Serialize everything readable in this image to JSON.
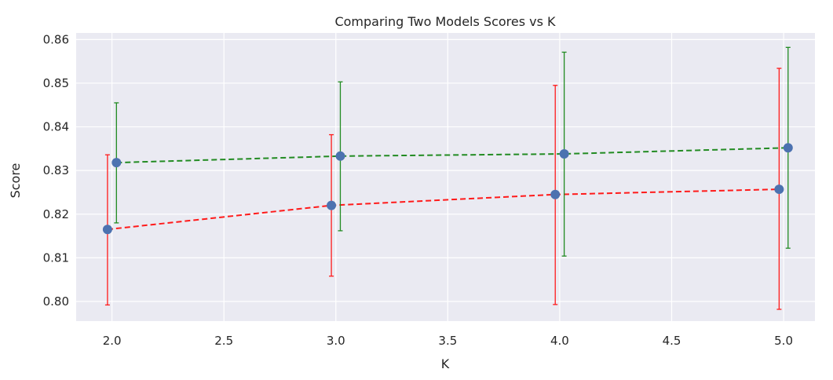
{
  "chart_data": {
    "type": "line",
    "title": "Comparing Two Models Scores vs K",
    "xlabel": "K",
    "ylabel": "Score",
    "xlim": [
      1.84,
      5.14
    ],
    "ylim": [
      0.7955,
      0.8615
    ],
    "xticks": [
      "2.0",
      "2.5",
      "3.0",
      "3.5",
      "4.0",
      "4.5",
      "5.0"
    ],
    "yticks": [
      "0.80",
      "0.81",
      "0.82",
      "0.83",
      "0.84",
      "0.85",
      "0.86"
    ],
    "grid": true,
    "background": "#eaeaf2",
    "marker_color": "#4c72b0",
    "series": [
      {
        "x": [
          1.98,
          2.98,
          3.98,
          4.98
        ],
        "values": [
          0.8165,
          0.822,
          0.8245,
          0.8257
        ],
        "err_low": [
          0.7992,
          0.8058,
          0.7993,
          0.7982
        ],
        "err_high": [
          0.8336,
          0.8382,
          0.8495,
          0.8534
        ],
        "color": "#ff1a1a"
      },
      {
        "x": [
          2.02,
          3.02,
          4.02,
          5.02
        ],
        "values": [
          0.8318,
          0.8333,
          0.8338,
          0.8352
        ],
        "err_low": [
          0.818,
          0.8162,
          0.8104,
          0.8122
        ],
        "err_high": [
          0.8455,
          0.8503,
          0.8571,
          0.8582
        ],
        "color": "#228b22"
      }
    ]
  }
}
